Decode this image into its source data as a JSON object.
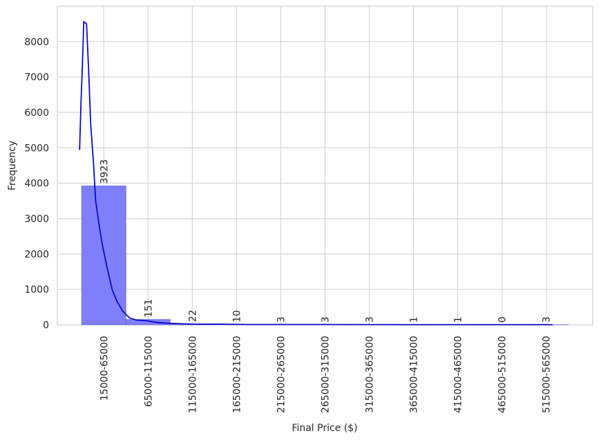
{
  "chart_data": {
    "type": "histogram",
    "x_label": "Final Price ($)",
    "y_label": "Frequency",
    "bins": [
      15000,
      65000,
      115000,
      165000,
      215000,
      265000,
      315000,
      365000,
      415000,
      465000,
      515000,
      565000
    ],
    "values": [
      3923,
      151,
      22,
      10,
      3,
      3,
      3,
      1,
      1,
      0,
      3
    ],
    "color": "#7f7ffb",
    "edge_color": "#6a6ae8",
    "kde": {
      "color": "#0a0ac8",
      "x": [
        12650,
        14200,
        15800,
        17350,
        20500,
        22800,
        25200,
        28300,
        30700,
        34600,
        37700,
        43200,
        49500,
        55000,
        61200,
        69100,
        76900,
        88700,
        102000,
        116000,
        139600,
        171000,
        202000,
        273000,
        390000,
        547000
      ],
      "y": [
        4940,
        6250,
        7320,
        8560,
        8500,
        7220,
        5660,
        4590,
        3520,
        2840,
        2350,
        1670,
        990,
        660,
        390,
        195,
        135,
        115,
        60,
        40,
        20,
        20,
        10,
        10,
        5,
        5
      ]
    },
    "xlim": [
      -12500,
      592500
    ],
    "ylim": [
      0,
      9000
    ],
    "xticks": [
      {
        "value": 40000,
        "label": "15000-65000"
      },
      {
        "value": 90000,
        "label": "65000-115000"
      },
      {
        "value": 140000,
        "label": "115000-165000"
      },
      {
        "value": 190000,
        "label": "165000-215000"
      },
      {
        "value": 240000,
        "label": "215000-265000"
      },
      {
        "value": 290000,
        "label": "265000-315000"
      },
      {
        "value": 340000,
        "label": "315000-365000"
      },
      {
        "value": 390000,
        "label": "365000-415000"
      },
      {
        "value": 440000,
        "label": "415000-465000"
      },
      {
        "value": 490000,
        "label": "465000-515000"
      },
      {
        "value": 540000,
        "label": "515000-565000"
      }
    ],
    "yticks": [
      0,
      1000,
      2000,
      3000,
      4000,
      5000,
      6000,
      7000,
      8000
    ],
    "grid": true
  }
}
